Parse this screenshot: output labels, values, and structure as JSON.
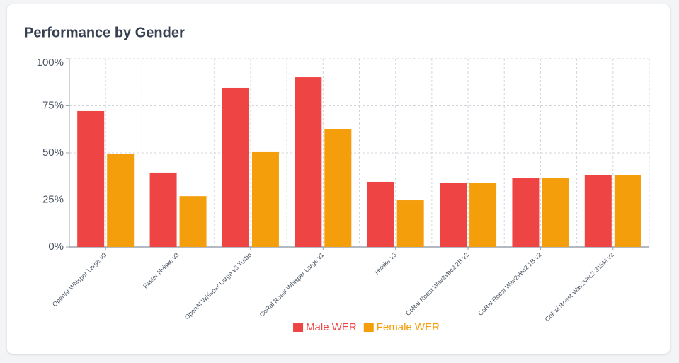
{
  "chart_data": {
    "type": "bar",
    "title": "Performance by Gender",
    "categories": [
      "OpenAI Whisper Large v3",
      "Faster Hviske v3",
      "OpenAI Whisper Large v3 Turbo",
      "CoRal Roest Whisper Large v1",
      "Hviske v3",
      "CoRal Roest Wav2Vec2 2B v2",
      "CoRal Roest Wav2Vec2 1B v2",
      "CoRal Roest Wav2Vec2 315M v2"
    ],
    "series": [
      {
        "name": "Male WER",
        "color": "#ef4444",
        "values": [
          72.2,
          39.5,
          84.6,
          90.2,
          34.6,
          34.2,
          36.8,
          38
        ]
      },
      {
        "name": "Female WER",
        "color": "#f59e0b",
        "values": [
          49.6,
          27,
          50.4,
          62.4,
          24.8,
          34.2,
          36.8,
          38
        ]
      }
    ],
    "ylim": [
      0,
      100
    ],
    "yticks": [
      {
        "value": 0,
        "label": "0%"
      },
      {
        "value": 25,
        "label": "25%"
      },
      {
        "value": 50,
        "label": "50%"
      },
      {
        "value": 75,
        "label": "75%"
      },
      {
        "value": 100,
        "label": "100%"
      }
    ],
    "grid": true,
    "legend": "bottom"
  }
}
